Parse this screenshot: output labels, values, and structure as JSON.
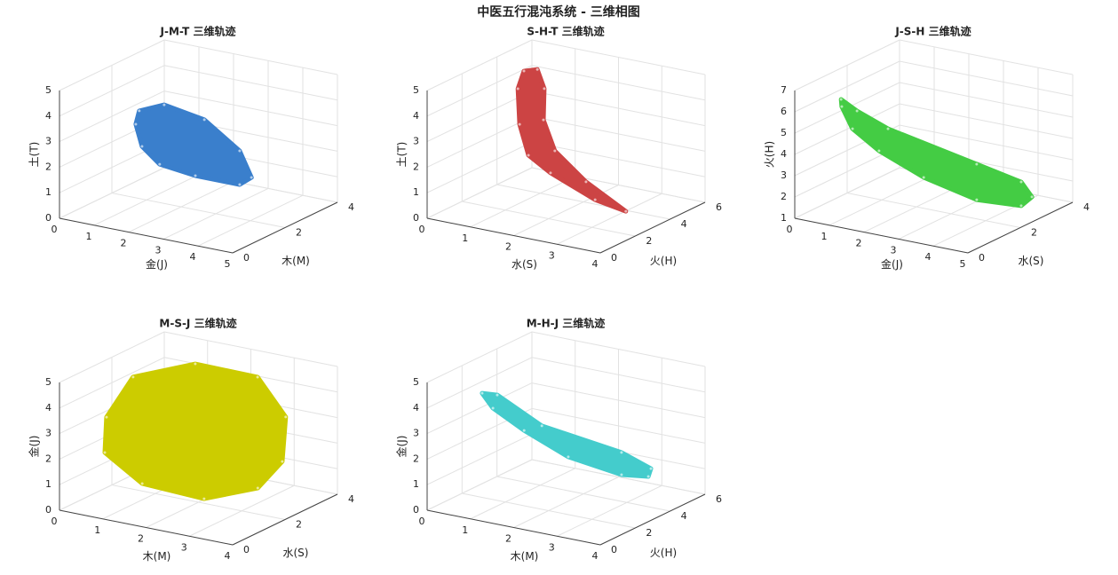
{
  "title": "中医五行混沌系统 - 三维相图",
  "chart_data": [
    {
      "type": "line3d",
      "title": "J-M-T 三维轨迹",
      "xlabel": "金(J)",
      "ylabel": "木(M)",
      "zlabel": "土(T)",
      "color": "#3a7fcc",
      "grid": true,
      "x": [
        0.79,
        1.51,
        2.67,
        3.69,
        4.03,
        3.69,
        2.41,
        1.38,
        0.87,
        0.69
      ],
      "y": [
        2,
        2,
        2,
        2,
        2,
        2,
        2,
        2,
        2,
        2
      ],
      "z": [
        3.43,
        3.86,
        3.59,
        2.65,
        1.7,
        1.33,
        1.33,
        1.5,
        2.06,
        2.88
      ],
      "xlim": [
        0,
        5
      ],
      "ylim": [
        0,
        4
      ],
      "zlim": [
        0,
        5
      ],
      "xticks": [
        0,
        1,
        2,
        3,
        4,
        5
      ],
      "yticks": [
        0,
        2,
        4
      ],
      "zticks": [
        0,
        1,
        2,
        3,
        4,
        5
      ]
    },
    {
      "type": "line3d",
      "title": "S-H-T 三维轨迹",
      "xlabel": "水(S)",
      "ylabel": "火(H)",
      "zlabel": "土(T)",
      "color": "#cc4444",
      "grid": true,
      "x": [
        0.3,
        0.61,
        0.77,
        0.75,
        1.74,
        2.46,
        3.38,
        2.67,
        1.64,
        1.13,
        0.2,
        0.16
      ],
      "y": [
        4.8,
        4.8,
        4.8,
        4.8,
        3,
        3,
        3,
        3,
        3,
        3,
        4.8,
        4.8
      ],
      "z": [
        4.28,
        4.45,
        3.75,
        2.52,
        2.24,
        1.27,
        0.43,
        0.64,
        1.34,
        1.86,
        2.16,
        3.54
      ],
      "xlim": [
        0,
        4
      ],
      "ylim": [
        0,
        6
      ],
      "zlim": [
        0,
        5
      ],
      "xticks": [
        0,
        1,
        2,
        3,
        4
      ],
      "yticks": [
        0,
        2,
        4,
        6
      ],
      "zticks": [
        0,
        1,
        2,
        3,
        4,
        5
      ]
    },
    {
      "type": "line3d",
      "title": "J-S-H 三维轨迹",
      "xlabel": "金(J)",
      "ylabel": "水(S)",
      "zlabel": "火(H)",
      "color": "#44cc44",
      "grid": true,
      "x": [
        0.43,
        0.89,
        1.18,
        3.74,
        4.42,
        4.73,
        4.42,
        3.74,
        2.21,
        0.92,
        0.76,
        0.45
      ],
      "y": [
        1.2,
        1.2,
        2,
        2,
        2.8,
        2.8,
        2.8,
        2,
        2,
        2,
        1.2,
        1.2
      ],
      "z": [
        6.01,
        5.62,
        4.4,
        3.57,
        2.48,
        1.88,
        1.36,
        1.9,
        2.45,
        3.28,
        4.74,
        5.68
      ],
      "xlim": [
        0,
        5
      ],
      "ylim": [
        0,
        4
      ],
      "zlim": [
        1,
        7
      ],
      "xticks": [
        0,
        1,
        2,
        3,
        4,
        5
      ],
      "yticks": [
        0,
        2,
        4
      ],
      "zticks": [
        1,
        2,
        3,
        4,
        5,
        6,
        7
      ]
    },
    {
      "type": "line3d",
      "title": "M-S-J 三维轨迹",
      "xlabel": "木(M)",
      "ylabel": "水(S)",
      "zlabel": "金(J)",
      "color": "#cccc00",
      "grid": true,
      "x": [
        0.36,
        0.49,
        1.2,
        2.64,
        3.29,
        3.21,
        3.37,
        2.13,
        0.7,
        0.32
      ],
      "y": [
        1.2,
        2,
        3.2,
        3.2,
        3.2,
        3.2,
        2,
        2,
        2,
        1.2
      ],
      "z": [
        3.17,
        4.39,
        4.55,
        4.52,
        3.18,
        1.41,
        1.02,
        0.18,
        0.29,
        1.77
      ],
      "xlim": [
        0,
        4
      ],
      "ylim": [
        0,
        4
      ],
      "zlim": [
        0,
        5
      ],
      "xticks": [
        0,
        1,
        2,
        3,
        4
      ],
      "yticks": [
        0,
        2,
        4
      ],
      "zticks": [
        0,
        1,
        2,
        3,
        4,
        5
      ]
    },
    {
      "type": "line3d",
      "title": "M-H-J 三维轨迹",
      "xlabel": "木(M)",
      "ylabel": "火(H)",
      "zlabel": "金(J)",
      "color": "#44cccc",
      "grid": true,
      "x": [
        0.06,
        0.41,
        1.44,
        3.28,
        3.96,
        3.9,
        3.28,
        2.05,
        1.03,
        0.31
      ],
      "y": [
        3,
        3,
        3,
        3,
        3,
        3,
        3,
        3,
        3,
        3
      ],
      "z": [
        3.61,
        3.66,
        2.8,
        2.38,
        1.98,
        1.65,
        1.51,
        1.79,
        2.48,
        3.11
      ],
      "xlim": [
        0,
        4
      ],
      "ylim": [
        0,
        6
      ],
      "zlim": [
        0,
        5
      ],
      "xticks": [
        0,
        1,
        2,
        3,
        4
      ],
      "yticks": [
        0,
        2,
        4,
        6
      ],
      "zticks": [
        0,
        1,
        2,
        3,
        4,
        5
      ]
    }
  ]
}
